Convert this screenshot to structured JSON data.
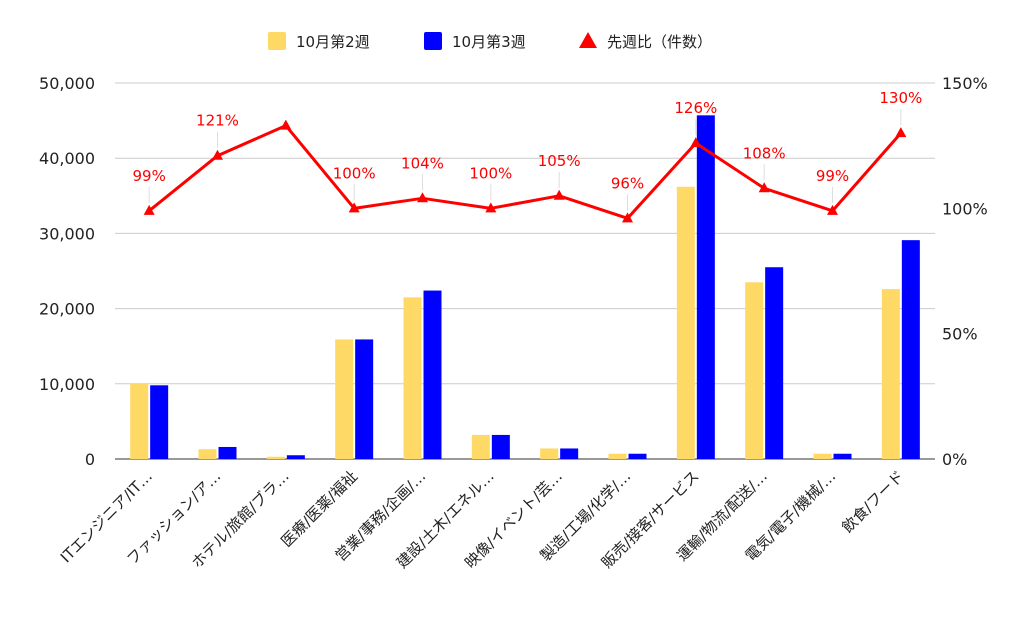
{
  "chart_data": {
    "type": "bar",
    "title": "",
    "categories": [
      "ITエンジニア/IT…",
      "ファッション/ア…",
      "ホテル/旅館/ブラ…",
      "医療/医薬/福祉",
      "営業/事務/企画/…",
      "建設/土木/エネル…",
      "映像/イベント/芸…",
      "製造/工場/化学/…",
      "販売/接客/サービス",
      "運輸/物流/配送/…",
      "電気/電子/機械/…",
      "飲食/フード"
    ],
    "series": [
      {
        "name": "10月第2週",
        "type": "bar",
        "axis": "left",
        "color": "#ffd966",
        "values": [
          10000,
          1300,
          300,
          15900,
          21500,
          3200,
          1400,
          700,
          36200,
          23500,
          700,
          22600
        ]
      },
      {
        "name": "10月第3週",
        "type": "bar",
        "axis": "left",
        "color": "#0000ff",
        "values": [
          9800,
          1600,
          500,
          15900,
          22400,
          3200,
          1400,
          700,
          45700,
          25500,
          700,
          29100
        ]
      },
      {
        "name": "先週比（件数）",
        "type": "line",
        "axis": "right",
        "color": "#ff0000",
        "marker": "triangle",
        "values": [
          99,
          121,
          133,
          100,
          104,
          100,
          105,
          96,
          126,
          108,
          99,
          130
        ],
        "labels": [
          "99%",
          "121%",
          "",
          "100%",
          "104%",
          "100%",
          "105%",
          "96%",
          "126%",
          "108%",
          "99%",
          "130%"
        ]
      }
    ],
    "y_left": {
      "ylim": [
        0,
        50000
      ],
      "ticks": [
        0,
        10000,
        20000,
        30000,
        40000,
        50000
      ],
      "tick_labels": [
        "0",
        "10,000",
        "20,000",
        "30,000",
        "40,000",
        "50,000"
      ]
    },
    "y_right": {
      "ylim": [
        0,
        150
      ],
      "ticks": [
        0,
        50,
        100,
        150
      ],
      "tick_labels": [
        "0%",
        "50%",
        "100%",
        "150%"
      ]
    },
    "grid": true,
    "legend_position": "top-center",
    "colors": {
      "grid": "#cccccc",
      "axis_line": "#333333",
      "text": "#222222"
    }
  }
}
